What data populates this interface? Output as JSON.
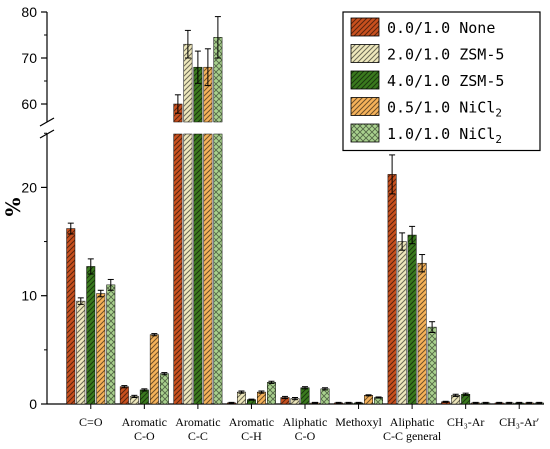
{
  "chart_data": {
    "type": "bar",
    "ylabel": "%",
    "y_axis_break": {
      "lower_range": [
        0,
        25
      ],
      "upper_range": [
        55,
        80
      ]
    },
    "y_ticks_lower": [
      0,
      10,
      20
    ],
    "y_ticks_upper": [
      60,
      70,
      80
    ],
    "legend_position": "top-right",
    "grid": false,
    "categories": [
      {
        "name": "co",
        "lines": [
          "C=O"
        ]
      },
      {
        "name": "aromatic-co",
        "lines": [
          "Aromatic",
          "C-O"
        ]
      },
      {
        "name": "aromatic-cc",
        "lines": [
          "Aromatic",
          "C-C"
        ]
      },
      {
        "name": "aromatic-ch",
        "lines": [
          "Aromatic",
          "C-H"
        ]
      },
      {
        "name": "aliphatic-co",
        "lines": [
          "Aliphatic",
          "C-O"
        ]
      },
      {
        "name": "methoxyl",
        "lines": [
          "Methoxyl"
        ]
      },
      {
        "name": "aliphatic-cc-general",
        "lines": [
          "Aliphatic",
          "C-C general"
        ]
      },
      {
        "name": "ch3-ar",
        "lines": [
          "CH₃-Ar"
        ]
      },
      {
        "name": "ch3-ar-prime",
        "lines": [
          "CH₃-Ar′"
        ]
      }
    ],
    "series": [
      {
        "name": "0.0/1.0 None",
        "legend_text": "0.0/1.0 None",
        "color": "#c8501e",
        "pattern": "diag",
        "values": [
          16.2,
          1.6,
          60.0,
          0.1,
          0.6,
          0.1,
          21.2,
          0.2,
          0.1
        ],
        "errors": [
          0.5,
          0.1,
          2.0,
          0.05,
          0.1,
          0.05,
          1.8,
          0.05,
          0.05
        ]
      },
      {
        "name": "2.0/1.0 ZSM-5",
        "legend_text": "2.0/1.0 ZSM-5",
        "color": "#eee8bc",
        "pattern": "diag",
        "values": [
          9.5,
          0.7,
          73.0,
          1.1,
          0.5,
          0.1,
          15.0,
          0.8,
          0.1
        ],
        "errors": [
          0.3,
          0.1,
          3.0,
          0.1,
          0.1,
          0.05,
          0.8,
          0.1,
          0.05
        ]
      },
      {
        "name": "4.0/1.0 ZSM-5",
        "legend_text": "4.0/1.0 ZSM-5",
        "color": "#3a7a1e",
        "pattern": "diag",
        "values": [
          12.7,
          1.3,
          68.0,
          0.4,
          1.5,
          0.1,
          15.6,
          0.9,
          0.1
        ],
        "errors": [
          0.7,
          0.1,
          3.5,
          0.05,
          0.1,
          0.05,
          0.8,
          0.1,
          0.05
        ]
      },
      {
        "name": "0.5/1.0 NiCl₂",
        "legend_text": "0.5/1.0 NiCl",
        "legend_sub": "2",
        "color": "#f5b25a",
        "pattern": "diag",
        "values": [
          10.2,
          6.4,
          68.0,
          1.1,
          0.1,
          0.8,
          13.0,
          0.1,
          0.1
        ],
        "errors": [
          0.3,
          0.1,
          4.0,
          0.1,
          0.05,
          0.05,
          0.8,
          0.05,
          0.05
        ]
      },
      {
        "name": "1.0/1.0 NiCl₂",
        "legend_text": "1.0/1.0 NiCl",
        "legend_sub": "2",
        "color": "#a9d18e",
        "pattern": "cross",
        "values": [
          11.0,
          2.8,
          74.5,
          2.0,
          1.4,
          0.6,
          7.1,
          0.1,
          0.1
        ],
        "errors": [
          0.5,
          0.1,
          4.5,
          0.1,
          0.1,
          0.05,
          0.5,
          0.05,
          0.05
        ]
      }
    ]
  }
}
